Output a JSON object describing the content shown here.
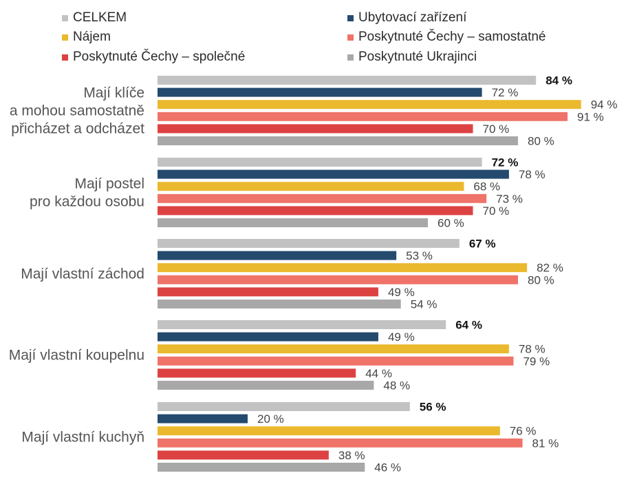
{
  "chart_data": {
    "type": "bar",
    "orientation": "horizontal",
    "legend_position": "top",
    "grid": false,
    "xlim": [
      0,
      100
    ],
    "value_suffix": " %",
    "categories": [
      [
        "Mají klíče",
        "a mohou samostatně",
        "přicházet a odcházet"
      ],
      [
        "Mají postel",
        "pro každou osobu"
      ],
      [
        "Mají vlastní záchod"
      ],
      [
        "Mají vlastní koupelnu"
      ],
      [
        "Mají vlastní kuchyň"
      ]
    ],
    "series": [
      {
        "name": "CELKEM",
        "color": "#c2c2c2",
        "values": [
          84,
          72,
          67,
          64,
          56
        ]
      },
      {
        "name": "Ubytovací zařízení",
        "color": "#244a6e",
        "values": [
          72,
          78,
          53,
          49,
          20
        ]
      },
      {
        "name": "Nájem",
        "color": "#eab92d",
        "values": [
          94,
          68,
          82,
          78,
          76
        ]
      },
      {
        "name": "Poskytnuté Čechy – samostatné",
        "color": "#ef7369",
        "values": [
          91,
          73,
          80,
          79,
          81
        ]
      },
      {
        "name": "Poskytnuté Čechy – společné",
        "color": "#dd4242",
        "values": [
          70,
          70,
          49,
          44,
          38
        ]
      },
      {
        "name": "Poskytnuté Ukrajinci",
        "color": "#a8a8a8",
        "values": [
          80,
          60,
          54,
          48,
          46
        ]
      }
    ]
  }
}
